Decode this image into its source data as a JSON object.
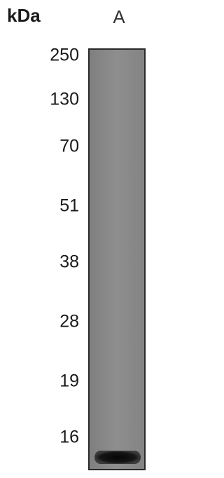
{
  "header": {
    "unit": "kDa",
    "lane": "A"
  },
  "markers": [
    "250",
    "130",
    "70",
    "51",
    "38",
    "28",
    "19",
    "16"
  ]
}
